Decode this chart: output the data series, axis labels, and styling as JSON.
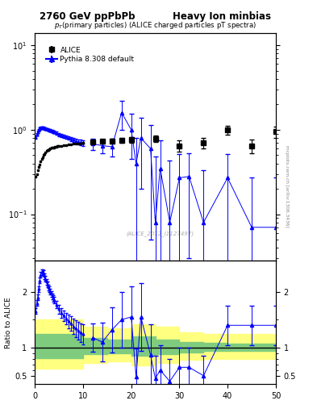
{
  "title_left": "2760 GeV ppPbPb",
  "title_right": "Heavy Ion minbias",
  "main_title": "p_{T}(primary particles) (ALICE charged particles pT spectra)",
  "watermark": "(ALICE_2012_I1127497)",
  "side_label": "mcplots.cern.ch [arXiv:1306.3436]",
  "legend_alice": "ALICE",
  "legend_pythia": "Pythia 8.308 default",
  "ylabel_ratio": "Ratio to ALICE",
  "xlim": [
    0,
    50
  ],
  "ylim_main": [
    0.028,
    14
  ],
  "ylim_ratio": [
    0.35,
    2.55
  ],
  "ratio_yticks": [
    0.5,
    1.0,
    2.0
  ],
  "ratio_ytick_labels": [
    "0.5",
    "1",
    "2"
  ],
  "color_alice": "#000000",
  "color_pythia": "#0000ff",
  "color_green": "#7fcc7f",
  "color_yellow": "#ffff80",
  "alice_dense_x": [
    0.2,
    0.4,
    0.6,
    0.8,
    1.0,
    1.2,
    1.4,
    1.6,
    1.8,
    2.0,
    2.2,
    2.4,
    2.6,
    2.8,
    3.0,
    3.2,
    3.4,
    3.6,
    3.8,
    4.0,
    4.2,
    4.4,
    4.6,
    4.8,
    5.0,
    5.5,
    6.0,
    6.5,
    7.0,
    7.5,
    8.0,
    8.5,
    9.0,
    9.5,
    10.0
  ],
  "alice_dense_y": [
    0.28,
    0.3,
    0.33,
    0.36,
    0.39,
    0.42,
    0.45,
    0.47,
    0.5,
    0.52,
    0.54,
    0.56,
    0.57,
    0.58,
    0.59,
    0.6,
    0.61,
    0.61,
    0.62,
    0.62,
    0.63,
    0.63,
    0.64,
    0.64,
    0.64,
    0.65,
    0.66,
    0.66,
    0.67,
    0.67,
    0.68,
    0.68,
    0.69,
    0.69,
    0.7
  ],
  "alice_sparse_x": [
    12,
    14,
    16,
    18,
    20,
    25,
    30,
    35,
    40,
    45,
    50
  ],
  "alice_sparse_y": [
    0.72,
    0.73,
    0.74,
    0.75,
    0.76,
    0.78,
    0.65,
    0.7,
    1.0,
    0.65,
    0.95
  ],
  "alice_sparse_yerr": [
    0.04,
    0.04,
    0.05,
    0.05,
    0.06,
    0.07,
    0.1,
    0.1,
    0.12,
    0.12,
    0.14
  ],
  "pythia_dense_x": [
    0.2,
    0.4,
    0.6,
    0.8,
    1.0,
    1.2,
    1.4,
    1.6,
    1.8,
    2.0,
    2.2,
    2.4,
    2.6,
    2.8,
    3.0,
    3.2,
    3.4,
    3.6,
    3.8,
    4.0,
    4.5,
    5.0,
    5.5,
    6.0,
    6.5,
    7.0,
    7.5,
    8.0,
    8.5,
    9.0,
    9.5,
    10.0
  ],
  "pythia_dense_y": [
    0.82,
    0.88,
    0.94,
    0.99,
    1.03,
    1.05,
    1.06,
    1.06,
    1.05,
    1.04,
    1.03,
    1.02,
    1.01,
    1.0,
    0.99,
    0.98,
    0.97,
    0.96,
    0.95,
    0.94,
    0.91,
    0.88,
    0.86,
    0.84,
    0.82,
    0.8,
    0.78,
    0.76,
    0.74,
    0.72,
    0.71,
    0.7
  ],
  "pythia_dense_yerr": [
    0.03,
    0.03,
    0.03,
    0.03,
    0.03,
    0.03,
    0.03,
    0.03,
    0.03,
    0.03,
    0.03,
    0.03,
    0.03,
    0.03,
    0.03,
    0.03,
    0.03,
    0.03,
    0.03,
    0.03,
    0.04,
    0.04,
    0.04,
    0.04,
    0.04,
    0.04,
    0.04,
    0.05,
    0.05,
    0.05,
    0.05,
    0.05
  ],
  "pythia_sparse_x": [
    12,
    14,
    16,
    18,
    20,
    21,
    22,
    24,
    25,
    26,
    28,
    30,
    32,
    35,
    40,
    45,
    50
  ],
  "pythia_sparse_y": [
    0.68,
    0.65,
    0.63,
    1.6,
    1.0,
    0.4,
    0.8,
    0.6,
    0.08,
    0.35,
    0.08,
    0.27,
    0.28,
    0.08,
    0.27,
    0.07,
    0.07
  ],
  "pythia_sparse_yerr": [
    0.1,
    0.12,
    0.15,
    0.6,
    0.55,
    0.4,
    0.6,
    0.55,
    0.4,
    0.4,
    0.35,
    0.25,
    0.25,
    0.25,
    0.25,
    0.2,
    0.2
  ],
  "ratio_dense_x": [
    0.2,
    0.4,
    0.6,
    0.8,
    1.0,
    1.2,
    1.4,
    1.6,
    1.8,
    2.0,
    2.2,
    2.4,
    2.6,
    2.8,
    3.0,
    3.2,
    3.4,
    3.6,
    3.8,
    4.0,
    4.5,
    5.0,
    5.5,
    6.0,
    6.5,
    7.0,
    7.5,
    8.0,
    8.5,
    9.0,
    9.5,
    10.0
  ],
  "ratio_dense_y": [
    1.65,
    1.8,
    1.9,
    2.05,
    2.2,
    2.3,
    2.35,
    2.35,
    2.33,
    2.28,
    2.23,
    2.18,
    2.13,
    2.08,
    2.04,
    2.0,
    1.96,
    1.92,
    1.88,
    1.85,
    1.77,
    1.69,
    1.62,
    1.57,
    1.52,
    1.47,
    1.43,
    1.38,
    1.34,
    1.3,
    1.27,
    1.24
  ],
  "ratio_dense_yerr": [
    0.05,
    0.05,
    0.05,
    0.05,
    0.05,
    0.05,
    0.05,
    0.05,
    0.05,
    0.05,
    0.05,
    0.05,
    0.05,
    0.05,
    0.05,
    0.05,
    0.05,
    0.05,
    0.06,
    0.06,
    0.07,
    0.08,
    0.09,
    0.1,
    0.1,
    0.12,
    0.13,
    0.14,
    0.15,
    0.16,
    0.17,
    0.18
  ],
  "ratio_sparse_x": [
    12,
    14,
    16,
    18,
    20,
    21,
    22,
    24,
    25,
    26,
    28,
    30,
    32,
    35,
    40,
    45,
    50
  ],
  "ratio_sparse_y": [
    1.18,
    1.1,
    1.32,
    1.5,
    1.55,
    0.48,
    1.55,
    0.87,
    0.45,
    0.6,
    0.4,
    0.65,
    0.65,
    0.5,
    1.4,
    1.4,
    1.4
  ],
  "ratio_sparse_yerr": [
    0.25,
    0.35,
    0.4,
    0.5,
    0.55,
    0.5,
    0.6,
    0.55,
    0.4,
    0.45,
    0.4,
    0.35,
    0.35,
    0.35,
    0.35,
    0.35,
    0.35
  ],
  "band_yellow_x": [
    0,
    10,
    15,
    20,
    25,
    30,
    35,
    40,
    50
  ],
  "band_yellow_lo": [
    0.62,
    0.72,
    0.75,
    0.68,
    0.72,
    0.78,
    0.8,
    0.8,
    0.8
  ],
  "band_yellow_hi": [
    1.5,
    1.38,
    1.35,
    1.42,
    1.38,
    1.28,
    1.25,
    1.25,
    1.25
  ],
  "band_green_x": [
    0,
    10,
    15,
    20,
    25,
    30,
    35,
    40,
    50
  ],
  "band_green_lo": [
    0.82,
    0.88,
    0.9,
    0.85,
    0.88,
    0.92,
    0.94,
    0.95,
    0.95
  ],
  "band_green_hi": [
    1.25,
    1.18,
    1.15,
    1.2,
    1.15,
    1.1,
    1.08,
    1.07,
    1.07
  ]
}
